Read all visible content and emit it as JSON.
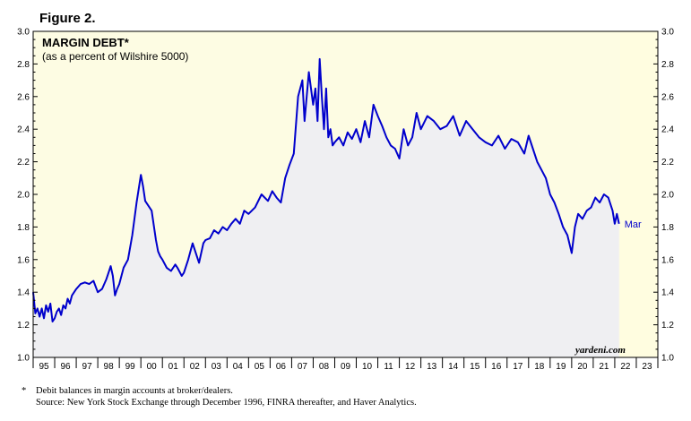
{
  "figure_label": "Figure 2.",
  "chart_data": {
    "type": "line",
    "title": "MARGIN DEBT*",
    "subtitle": "(as a percent of Wilshire 5000)",
    "ylim": [
      1.0,
      3.0
    ],
    "yticks": [
      "1.0",
      "1.2",
      "1.4",
      "1.6",
      "1.8",
      "2.0",
      "2.2",
      "2.4",
      "2.6",
      "2.8",
      "3.0"
    ],
    "xlim": [
      1995.0,
      2024.0
    ],
    "xtick_labels": [
      "95",
      "96",
      "97",
      "98",
      "99",
      "00",
      "01",
      "02",
      "03",
      "04",
      "05",
      "06",
      "07",
      "08",
      "09",
      "10",
      "11",
      "12",
      "13",
      "14",
      "15",
      "16",
      "17",
      "18",
      "19",
      "20",
      "21",
      "22",
      "23"
    ],
    "forecast_shade_start": 2022.25,
    "last_point_label": "Mar",
    "watermark": "yardeni.com",
    "series": [
      {
        "name": "Margin debt as % of Wilshire 5000",
        "color": "#0000cc",
        "x": [
          1995.0,
          1995.1,
          1995.2,
          1995.3,
          1995.4,
          1995.5,
          1995.6,
          1995.7,
          1995.8,
          1995.9,
          1996.0,
          1996.1,
          1996.2,
          1996.3,
          1996.4,
          1996.5,
          1996.6,
          1996.7,
          1996.8,
          1996.9,
          1997.0,
          1997.2,
          1997.4,
          1997.6,
          1997.8,
          1998.0,
          1998.2,
          1998.4,
          1998.5,
          1998.6,
          1998.7,
          1998.8,
          1998.9,
          1999.0,
          1999.2,
          1999.4,
          1999.6,
          1999.8,
          2000.0,
          2000.1,
          2000.2,
          2000.3,
          2000.5,
          2000.7,
          2000.8,
          2000.9,
          2001.0,
          2001.2,
          2001.4,
          2001.6,
          2001.7,
          2001.9,
          2002.0,
          2002.2,
          2002.4,
          2002.6,
          2002.7,
          2002.9,
          2003.0,
          2003.2,
          2003.4,
          2003.6,
          2003.8,
          2004.0,
          2004.2,
          2004.4,
          2004.6,
          2004.8,
          2005.0,
          2005.3,
          2005.6,
          2005.9,
          2006.1,
          2006.3,
          2006.5,
          2006.7,
          2006.9,
          2007.1,
          2007.3,
          2007.5,
          2007.6,
          2007.7,
          2007.8,
          2008.0,
          2008.1,
          2008.2,
          2008.3,
          2008.4,
          2008.5,
          2008.6,
          2008.7,
          2008.8,
          2008.9,
          2009.0,
          2009.2,
          2009.4,
          2009.6,
          2009.8,
          2010.0,
          2010.2,
          2010.4,
          2010.6,
          2010.8,
          2011.0,
          2011.2,
          2011.4,
          2011.6,
          2011.8,
          2012.0,
          2012.2,
          2012.4,
          2012.6,
          2012.8,
          2013.0,
          2013.3,
          2013.6,
          2013.9,
          2014.2,
          2014.5,
          2014.8,
          2015.1,
          2015.4,
          2015.7,
          2016.0,
          2016.3,
          2016.6,
          2016.9,
          2017.2,
          2017.5,
          2017.8,
          2018.0,
          2018.2,
          2018.4,
          2018.6,
          2018.8,
          2019.0,
          2019.2,
          2019.4,
          2019.6,
          2019.8,
          2020.0,
          2020.15,
          2020.3,
          2020.5,
          2020.7,
          2020.9,
          2021.1,
          2021.3,
          2021.5,
          2021.7,
          2021.9,
          2022.0,
          2022.1,
          2022.2
        ],
        "values": [
          1.4,
          1.27,
          1.3,
          1.25,
          1.3,
          1.24,
          1.32,
          1.28,
          1.33,
          1.22,
          1.24,
          1.28,
          1.3,
          1.26,
          1.32,
          1.3,
          1.36,
          1.33,
          1.38,
          1.4,
          1.42,
          1.45,
          1.46,
          1.45,
          1.47,
          1.4,
          1.42,
          1.48,
          1.52,
          1.56,
          1.5,
          1.38,
          1.42,
          1.45,
          1.55,
          1.6,
          1.75,
          1.95,
          2.12,
          2.05,
          1.96,
          1.94,
          1.9,
          1.72,
          1.65,
          1.62,
          1.6,
          1.55,
          1.53,
          1.57,
          1.55,
          1.5,
          1.52,
          1.6,
          1.7,
          1.62,
          1.58,
          1.7,
          1.72,
          1.73,
          1.78,
          1.76,
          1.8,
          1.78,
          1.82,
          1.85,
          1.82,
          1.9,
          1.88,
          1.92,
          2.0,
          1.96,
          2.02,
          1.98,
          1.95,
          2.1,
          2.18,
          2.25,
          2.6,
          2.7,
          2.45,
          2.6,
          2.75,
          2.55,
          2.65,
          2.45,
          2.83,
          2.6,
          2.4,
          2.65,
          2.35,
          2.4,
          2.3,
          2.32,
          2.35,
          2.3,
          2.38,
          2.34,
          2.4,
          2.32,
          2.45,
          2.35,
          2.55,
          2.48,
          2.42,
          2.35,
          2.3,
          2.28,
          2.22,
          2.4,
          2.3,
          2.35,
          2.5,
          2.4,
          2.48,
          2.45,
          2.4,
          2.42,
          2.48,
          2.36,
          2.45,
          2.4,
          2.35,
          2.32,
          2.3,
          2.36,
          2.28,
          2.34,
          2.32,
          2.25,
          2.36,
          2.28,
          2.2,
          2.15,
          2.1,
          2.0,
          1.95,
          1.88,
          1.8,
          1.75,
          1.64,
          1.8,
          1.88,
          1.85,
          1.9,
          1.92,
          1.98,
          1.95,
          2.0,
          1.98,
          1.9,
          1.82,
          1.88,
          1.82
        ]
      }
    ]
  },
  "footnote": {
    "mark": "*",
    "line1": "Debit balances in margin accounts at broker/dealers.",
    "line2": "Source: New York Stock Exchange through December 1996, FINRA thereafter, and Haver Analytics."
  }
}
